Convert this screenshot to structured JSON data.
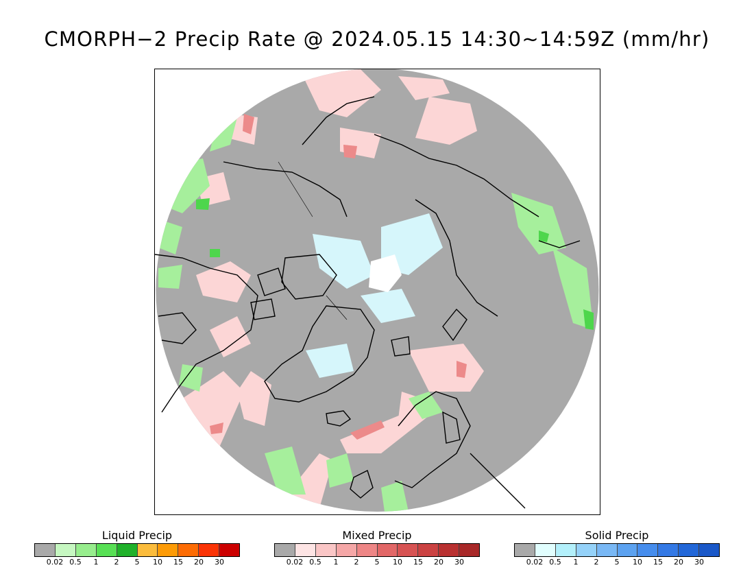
{
  "title": "CMORPH−2 Precip Rate @ 2024.05.15 14:30~14:59Z (mm/hr)",
  "map": {
    "projection": "polar-stereographic-north",
    "background_color": "#a9a9a9",
    "coastline_color": "#000000",
    "region": "Arctic / Northern Hemisphere high latitudes"
  },
  "legends": [
    {
      "title": "Liquid Precip",
      "colors": [
        "#a9a9a9",
        "#c6f7c1",
        "#97ed8d",
        "#58e055",
        "#20b12a",
        "#fbbc3c",
        "#fd9b06",
        "#fd6c04",
        "#fb3406",
        "#cc0000"
      ],
      "ticks": [
        "0.02",
        "0.5",
        "1",
        "2",
        "5",
        "10",
        "15",
        "20",
        "30"
      ]
    },
    {
      "title": "Mixed Precip",
      "colors": [
        "#a9a9a9",
        "#fde4e4",
        "#fac6c6",
        "#f5a7a7",
        "#ee8686",
        "#e26767",
        "#d75353",
        "#cb4242",
        "#b93131",
        "#a82828"
      ],
      "ticks": [
        "0.02",
        "0.5",
        "1",
        "2",
        "5",
        "10",
        "15",
        "20",
        "30"
      ]
    },
    {
      "title": "Solid Precip",
      "colors": [
        "#a9a9a9",
        "#e1fefe",
        "#b3f0fb",
        "#95d2f9",
        "#79b8f5",
        "#5ca2f0",
        "#468ded",
        "#3479e5",
        "#2267d8",
        "#1a58c8"
      ],
      "ticks": [
        "0.02",
        "0.5",
        "1",
        "2",
        "5",
        "10",
        "15",
        "20",
        "30"
      ]
    }
  ]
}
